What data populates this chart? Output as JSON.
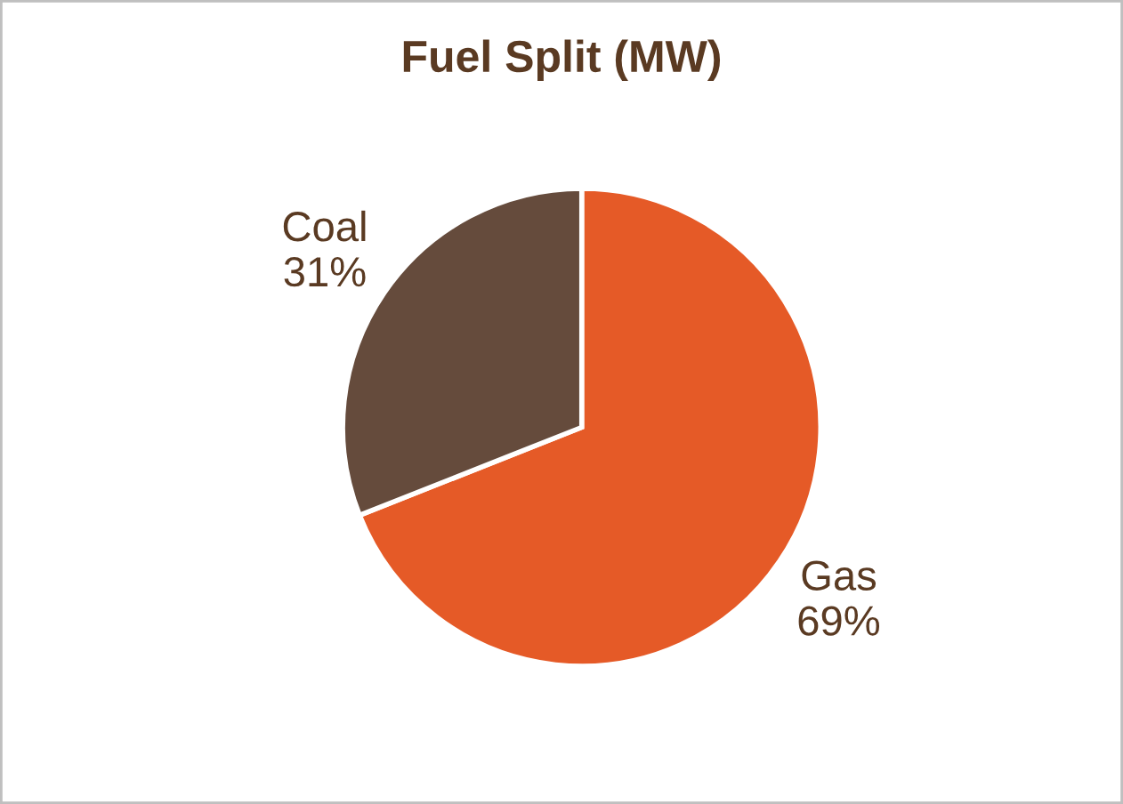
{
  "chart_data": {
    "type": "pie",
    "title": "Fuel Split (MW)",
    "categories": [
      "Gas",
      "Coal"
    ],
    "values": [
      69,
      31
    ],
    "value_labels": [
      "69%",
      "31%"
    ],
    "colors": [
      "#e55a27",
      "#654b3c"
    ]
  }
}
